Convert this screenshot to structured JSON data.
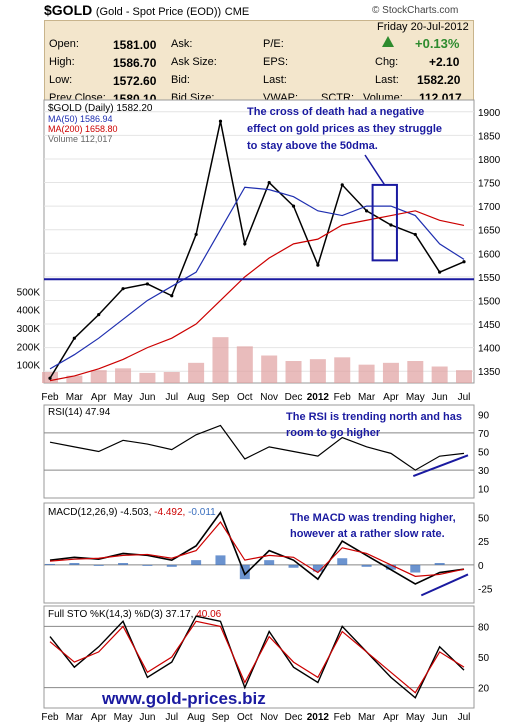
{
  "header": {
    "ticker": "$GOLD",
    "description": "(Gold - Spot Price (EOD))",
    "exchange": "CME",
    "credit": "© StockCharts.com"
  },
  "quote": {
    "open_label": "Open:",
    "open": "1581.00",
    "high_label": "High:",
    "high": "1586.70",
    "low_label": "Low:",
    "low": "1572.60",
    "prev_label": "Prev Close:",
    "prev": "1580.10",
    "ask_label": "Ask:",
    "ask_size_label": "Ask Size:",
    "bid_label": "Bid:",
    "bid_size_label": "Bid Size:",
    "pe_label": "P/E:",
    "eps_label": "EPS:",
    "last_label": "Last:",
    "vwap_label": "VWAP:",
    "sctr_label": "SCTR:",
    "date": "Friday  20-Jul-2012",
    "change_pct": "+0.13%",
    "chg_label": "Chg:",
    "chg": "+2.10",
    "last_label2": "Last:",
    "last": "1582.20",
    "volume_label": "Volume:",
    "volume": "112,017",
    "up_color": "#2e8b2e"
  },
  "price_panel": {
    "legend_title": "$GOLD (Daily) 1582.20",
    "legend_ma50": "MA(50) 1586.94",
    "legend_ma200": "MA(200) 1658.80",
    "legend_volume": "Volume 112,017",
    "annotation": "The cross of death had a negative effect on gold prices as they struggle to stay above the 50dma.",
    "y_ticks": [
      "1900",
      "1850",
      "1800",
      "1750",
      "1700",
      "1650",
      "1600",
      "1550",
      "1500",
      "1450",
      "1400",
      "1350"
    ],
    "volume_ticks": [
      "500K",
      "400K",
      "300K",
      "200K",
      "100K"
    ],
    "ylim": [
      1325,
      1925
    ],
    "support_level": 1545,
    "box": {
      "start_month": "Mar",
      "end_month": "Apr",
      "low": 1585,
      "high": 1745
    },
    "ma50_color": "#1f2fb0",
    "ma200_color": "#cc0000",
    "line_color": "#1a1aa0"
  },
  "rsi_panel": {
    "legend": "RSI(14) 47.94",
    "annotation": "The RSI is trending north and has room to go higher",
    "y_ticks": [
      "90",
      "70",
      "50",
      "30",
      "10"
    ]
  },
  "macd_panel": {
    "legend_main": "MACD(12,26,9) -4.503,",
    "legend_signal": "-4.492,",
    "legend_hist": "-0.011",
    "annotation": "The MACD was trending higher, however at a rather slow rate.",
    "y_ticks": [
      "50",
      "25",
      "0",
      "-25"
    ]
  },
  "sto_panel": {
    "legend_main": "Full STO %K(14,3) %D(3) 37.17,",
    "legend_d": "40.06",
    "y_ticks": [
      "80",
      "50",
      "20"
    ],
    "watermark": "www.gold-prices.biz"
  },
  "x_axis": {
    "labels": [
      "Feb",
      "Mar",
      "Apr",
      "May",
      "Jun",
      "Jul",
      "Aug",
      "Sep",
      "Oct",
      "Nov",
      "Dec",
      "2012",
      "Feb",
      "Mar",
      "Apr",
      "May",
      "Jun",
      "Jul"
    ]
  },
  "chart_data": {
    "type": "line",
    "title": "$GOLD (Gold - Spot Price (EOD)) CME",
    "x": [
      "Feb",
      "Mar",
      "Apr",
      "May",
      "Jun",
      "Jul",
      "Aug",
      "Sep",
      "Oct",
      "Nov",
      "Dec",
      "2012",
      "Feb",
      "Mar",
      "Apr",
      "May",
      "Jun",
      "Jul"
    ],
    "series": [
      {
        "name": "$GOLD (Daily)",
        "values": [
          1335,
          1420,
          1470,
          1525,
          1535,
          1510,
          1640,
          1880,
          1620,
          1750,
          1700,
          1575,
          1745,
          1690,
          1660,
          1640,
          1560,
          1582
        ]
      },
      {
        "name": "MA(50)",
        "values": [
          1355,
          1385,
          1420,
          1460,
          1500,
          1530,
          1560,
          1650,
          1740,
          1735,
          1720,
          1690,
          1680,
          1700,
          1700,
          1680,
          1620,
          1587
        ]
      },
      {
        "name": "MA(200)",
        "values": [
          1330,
          1340,
          1355,
          1375,
          1400,
          1420,
          1450,
          1500,
          1550,
          1590,
          1620,
          1630,
          1660,
          1670,
          1680,
          1690,
          1670,
          1659
        ]
      }
    ],
    "ylim": [
      1325,
      1925
    ],
    "volume_ylim": [
      0,
      600000
    ],
    "volume": [
      60,
      40,
      70,
      80,
      55,
      60,
      110,
      250,
      200,
      150,
      120,
      130,
      140,
      100,
      110,
      120,
      90,
      70
    ],
    "rsi": [
      60,
      55,
      50,
      62,
      58,
      52,
      68,
      78,
      42,
      55,
      50,
      45,
      65,
      55,
      48,
      30,
      45,
      48
    ],
    "macd": [
      5,
      8,
      6,
      12,
      10,
      5,
      20,
      55,
      -10,
      15,
      5,
      -15,
      25,
      10,
      -5,
      -20,
      -8,
      -4.503
    ],
    "macd_signal": [
      4,
      6,
      7,
      10,
      11,
      7,
      15,
      45,
      5,
      10,
      8,
      -8,
      18,
      12,
      0,
      -12,
      -10,
      -4.492
    ],
    "sto_k": [
      70,
      40,
      60,
      85,
      30,
      45,
      90,
      85,
      20,
      75,
      40,
      25,
      80,
      55,
      30,
      10,
      60,
      37.17
    ],
    "sto_d": [
      65,
      45,
      55,
      80,
      35,
      50,
      85,
      80,
      25,
      70,
      45,
      30,
      75,
      55,
      35,
      15,
      55,
      40.06
    ]
  }
}
